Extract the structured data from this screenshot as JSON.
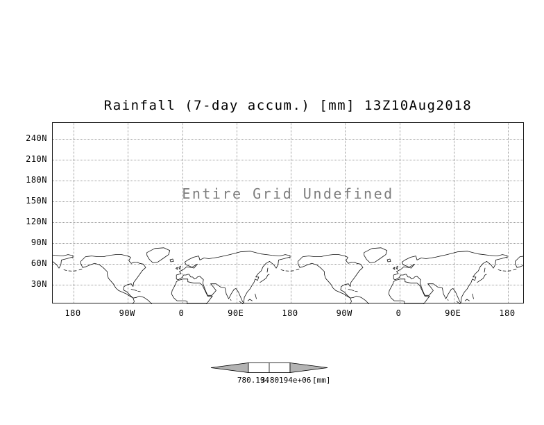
{
  "app": {
    "background": "#ffffff"
  },
  "chart_data": {
    "type": "map",
    "title": "Rainfall (7-day accum.) [mm] 13Z10Aug2018",
    "annotation": "Entire Grid Undefined",
    "annotation_color": "#7d7d7d",
    "y_ticks": [
      "240N",
      "210N",
      "180N",
      "150N",
      "120N",
      "90N",
      "60N",
      "30N"
    ],
    "x_ticks": [
      "180",
      "90W",
      "0",
      "90E",
      "180",
      "90W",
      "0",
      "90E",
      "180"
    ],
    "grid": "dotted",
    "legend": "none",
    "map_content": "world coastlines, two longitude cycles (180W-180E repeated), northern hemisphere band visible",
    "colorbar": {
      "levels": [
        "780.194",
        "3.80194e+06"
      ],
      "units": "[mm]",
      "arrow_color": "#b3b3b3",
      "box_color": "#ffffff",
      "outline_color": "#000000"
    }
  }
}
